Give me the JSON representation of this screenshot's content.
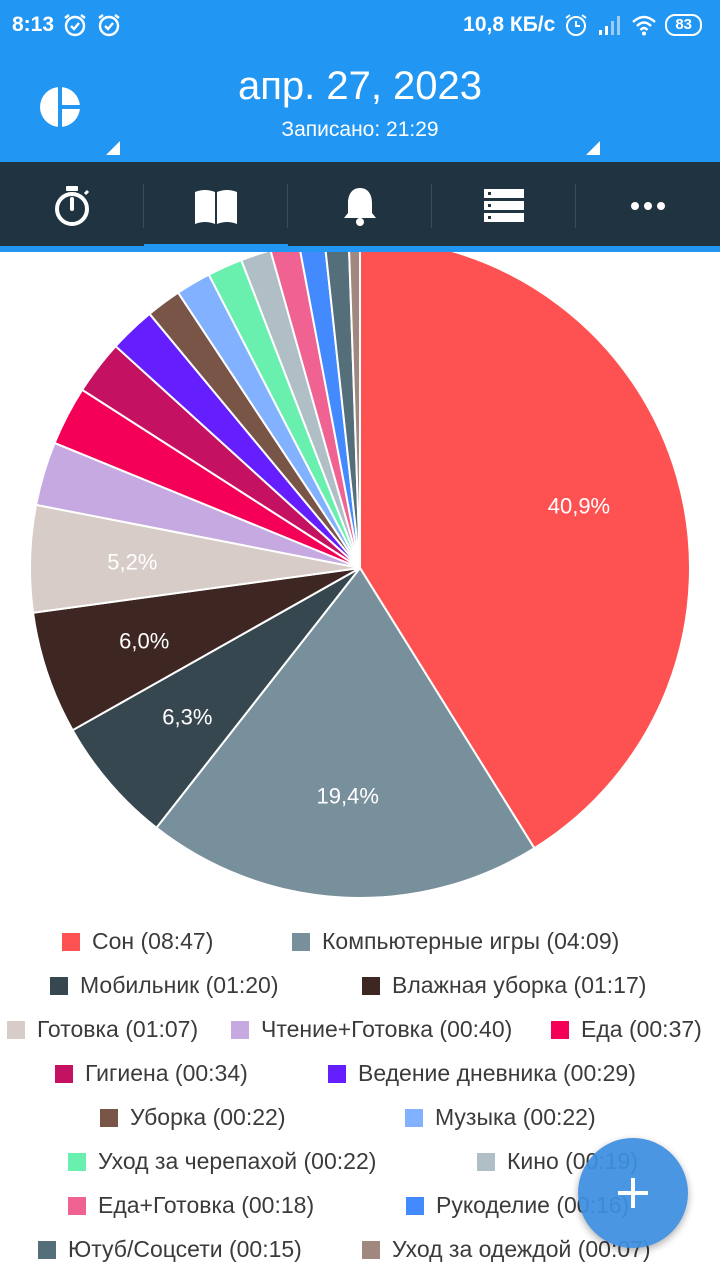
{
  "status": {
    "time": "8:13",
    "net_speed": "10,8 КБ/с",
    "battery": "83",
    "icons": [
      "alarm-check-icon",
      "alarm-check-icon",
      "alarm-icon",
      "signal-icon",
      "wifi-icon",
      "battery-icon"
    ]
  },
  "header": {
    "date": "апр. 27, 2023",
    "subtitle": "Записано: 21:29",
    "logo_icon": "pie-logo-icon"
  },
  "tabs": [
    {
      "icon": "stopwatch-icon",
      "active": false
    },
    {
      "icon": "book-icon",
      "active": true
    },
    {
      "icon": "bell-icon",
      "active": false
    },
    {
      "icon": "list-icon",
      "active": false
    },
    {
      "icon": "more-icon",
      "active": false
    }
  ],
  "colors": {
    "primary": "#2196f3",
    "tabbar": "#1f3440"
  },
  "chart_data": {
    "type": "pie",
    "slices": [
      {
        "name": "Сон",
        "duration": "08:47",
        "value": 527,
        "color": "#fe5252",
        "label": "40,9%"
      },
      {
        "name": "Компьютерные игры",
        "duration": "04:09",
        "value": 249,
        "color": "#78909c",
        "label": "19,4%"
      },
      {
        "name": "Мобильник",
        "duration": "01:20",
        "value": 80,
        "color": "#37474f",
        "label": "6,3%"
      },
      {
        "name": "Влажная уборка",
        "duration": "01:17",
        "value": 77,
        "color": "#3e2723",
        "label": "6,0%"
      },
      {
        "name": "Готовка",
        "duration": "01:07",
        "value": 67,
        "color": "#d7ccc8",
        "label": "5,2%"
      },
      {
        "name": "Чтение+Готовка",
        "duration": "00:40",
        "value": 40,
        "color": "#c5a9e0",
        "label": ""
      },
      {
        "name": "Еда",
        "duration": "00:37",
        "value": 37,
        "color": "#f50057",
        "label": ""
      },
      {
        "name": "Гигиена",
        "duration": "00:34",
        "value": 34,
        "color": "#c51162",
        "label": ""
      },
      {
        "name": "Ведение дневника",
        "duration": "00:29",
        "value": 29,
        "color": "#651fff",
        "label": ""
      },
      {
        "name": "Уборка",
        "duration": "00:22",
        "value": 22,
        "color": "#795548",
        "label": ""
      },
      {
        "name": "Музыка",
        "duration": "00:22",
        "value": 22,
        "color": "#82b1ff",
        "label": ""
      },
      {
        "name": "Уход за черепахой",
        "duration": "00:22",
        "value": 22,
        "color": "#69f0ae",
        "label": ""
      },
      {
        "name": "Кино",
        "duration": "00:19",
        "value": 19,
        "color": "#b0bec5",
        "label": ""
      },
      {
        "name": "Еда+Готовка",
        "duration": "00:18",
        "value": 18,
        "color": "#f06292",
        "label": ""
      },
      {
        "name": "Рукоделие",
        "duration": "00:16",
        "value": 16,
        "color": "#448aff",
        "label": ""
      },
      {
        "name": "Ютуб/Соцсети",
        "duration": "00:15",
        "value": 15,
        "color": "#546e7a",
        "label": ""
      },
      {
        "name": "Уход за одеждой",
        "duration": "00:07",
        "value": 7,
        "color": "#a1887f",
        "label": ""
      }
    ]
  },
  "legend": [
    {
      "text": "Сон (08:47)",
      "color": "#fe5252"
    },
    {
      "text": "Компьютерные игры  (04:09)",
      "color": "#78909c"
    },
    {
      "text": "Мобильник  (01:20)",
      "color": "#37474f"
    },
    {
      "text": "Влажная уборка  (01:17)",
      "color": "#3e2723"
    },
    {
      "text": "Готовка  (01:07)",
      "color": "#d7ccc8"
    },
    {
      "text": "Чтение+Готовка  (00:40)",
      "color": "#c5a9e0"
    },
    {
      "text": "Еда  (00:37)",
      "color": "#f50057"
    },
    {
      "text": "Гигиена   (00:34)",
      "color": "#c51162"
    },
    {
      "text": "Ведение дневника   (00:29)",
      "color": "#651fff"
    },
    {
      "text": "Уборка  (00:22)",
      "color": "#795548"
    },
    {
      "text": "Музыка   (00:22)",
      "color": "#82b1ff"
    },
    {
      "text": "Уход за черепахой   (00:22)",
      "color": "#69f0ae"
    },
    {
      "text": "Кино   (00:19)",
      "color": "#b0bec5"
    },
    {
      "text": "Еда+Готовка  (00:18)",
      "color": "#f06292"
    },
    {
      "text": "Рукоделие   (00:16)",
      "color": "#448aff"
    },
    {
      "text": "Ютуб/Соцсети  (00:15)",
      "color": "#546e7a"
    },
    {
      "text": "Уход за одеждой   (00:07)",
      "color": "#a1887f"
    }
  ],
  "fab": {
    "icon": "plus-icon"
  }
}
